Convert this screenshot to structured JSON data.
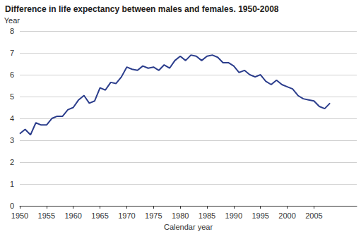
{
  "chart_data": {
    "type": "line",
    "title": "Difference in life expectancy between males and females. 1950-2008",
    "y_label": "Year",
    "x_label": "Calendar year",
    "x": [
      1950,
      1951,
      1952,
      1953,
      1954,
      1955,
      1956,
      1957,
      1958,
      1959,
      1960,
      1961,
      1962,
      1963,
      1964,
      1965,
      1966,
      1967,
      1968,
      1969,
      1970,
      1971,
      1972,
      1973,
      1974,
      1975,
      1976,
      1977,
      1978,
      1979,
      1980,
      1981,
      1982,
      1983,
      1984,
      1985,
      1986,
      1987,
      1988,
      1989,
      1990,
      1991,
      1992,
      1993,
      1994,
      1995,
      1996,
      1997,
      1998,
      1999,
      2000,
      2001,
      2002,
      2003,
      2004,
      2005,
      2006,
      2007,
      2008
    ],
    "values": [
      3.3,
      3.5,
      3.25,
      3.8,
      3.7,
      3.7,
      4.0,
      4.1,
      4.1,
      4.4,
      4.5,
      4.85,
      5.05,
      4.7,
      4.8,
      5.4,
      5.3,
      5.65,
      5.6,
      5.9,
      6.35,
      6.25,
      6.2,
      6.4,
      6.3,
      6.35,
      6.2,
      6.45,
      6.3,
      6.65,
      6.85,
      6.65,
      6.9,
      6.85,
      6.65,
      6.85,
      6.9,
      6.8,
      6.55,
      6.55,
      6.4,
      6.1,
      6.2,
      6.0,
      5.9,
      6.0,
      5.7,
      5.55,
      5.75,
      5.55,
      5.45,
      5.35,
      5.05,
      4.9,
      4.85,
      4.8,
      4.55,
      4.45,
      4.7
    ],
    "color": "#2b3d8c",
    "xlim": [
      1950,
      2013
    ],
    "xticks": [
      1950,
      1955,
      1960,
      1965,
      1970,
      1975,
      1980,
      1985,
      1990,
      1995,
      2000,
      2005
    ],
    "ylim": [
      0,
      8
    ],
    "yticks": [
      0,
      1,
      2,
      3,
      4,
      5,
      6,
      7,
      8
    ],
    "grid": true
  }
}
